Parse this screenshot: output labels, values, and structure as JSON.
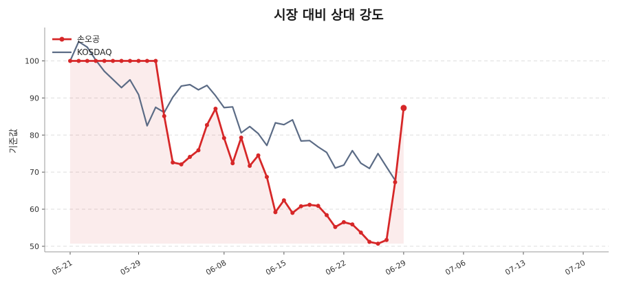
{
  "chart_data": {
    "type": "line",
    "title": "시장 대비 상대 강도",
    "xlabel": "",
    "ylabel": "기준값",
    "ylim": [
      48.5,
      109
    ],
    "yticks": [
      50,
      60,
      70,
      80,
      90,
      100
    ],
    "x": [
      "05-21",
      "05-22",
      "05-23",
      "05-24",
      "05-25",
      "05-26",
      "05-27",
      "05-28",
      "05-29",
      "05-30",
      "05-31",
      "06-01",
      "06-02",
      "06-03",
      "06-04",
      "06-05",
      "06-06",
      "06-07",
      "06-08",
      "06-09",
      "06-10",
      "06-11",
      "06-12",
      "06-13",
      "06-14",
      "06-15",
      "06-16",
      "06-17",
      "06-18",
      "06-19",
      "06-20",
      "06-21",
      "06-22",
      "06-23",
      "06-24",
      "06-25",
      "06-26",
      "06-27",
      "06-28",
      "06-29",
      "06-30",
      "07-01",
      "07-02",
      "07-03",
      "07-04",
      "07-05",
      "07-06",
      "07-07",
      "07-08",
      "07-09",
      "07-10",
      "07-11",
      "07-12",
      "07-13",
      "07-14",
      "07-15",
      "07-16",
      "07-17",
      "07-18",
      "07-19",
      "07-20"
    ],
    "xticks": [
      "05-21",
      "05-29",
      "06-08",
      "06-15",
      "06-22",
      "06-29",
      "07-06",
      "07-13",
      "07-20"
    ],
    "grid": true,
    "legend_position": "top-left",
    "series": [
      {
        "name": "손오공",
        "color": "#d62728",
        "style": "line-markers-filled",
        "points": [
          [
            "05-21",
            100
          ],
          [
            "05-22",
            100
          ],
          [
            "05-23",
            100
          ],
          [
            "05-24",
            100
          ],
          [
            "05-25",
            100
          ],
          [
            "05-26",
            100
          ],
          [
            "05-27",
            100
          ],
          [
            "05-28",
            100
          ],
          [
            "05-29",
            100
          ],
          [
            "05-30",
            100
          ],
          [
            "05-31",
            100
          ],
          [
            "06-01",
            85.1
          ],
          [
            "06-02",
            72.6
          ],
          [
            "06-03",
            72.1
          ],
          [
            "06-04",
            74.1
          ],
          [
            "06-05",
            75.9
          ],
          [
            "06-06",
            82.7
          ],
          [
            "06-07",
            87.1
          ],
          [
            "06-08",
            79.2
          ],
          [
            "06-09",
            72.4
          ],
          [
            "06-10",
            79.3
          ],
          [
            "06-11",
            71.7
          ],
          [
            "06-12",
            74.5
          ],
          [
            "06-13",
            68.7
          ],
          [
            "06-14",
            59.2
          ],
          [
            "06-15",
            62.4
          ],
          [
            "06-16",
            59.0
          ],
          [
            "06-17",
            60.8
          ],
          [
            "06-18",
            61.2
          ],
          [
            "06-19",
            60.9
          ],
          [
            "06-20",
            58.4
          ],
          [
            "06-21",
            55.2
          ],
          [
            "06-22",
            56.5
          ],
          [
            "06-23",
            55.9
          ],
          [
            "06-24",
            53.7
          ],
          [
            "06-25",
            51.2
          ],
          [
            "06-26",
            50.7
          ],
          [
            "06-27",
            51.7
          ],
          [
            "06-28",
            67.3
          ],
          [
            "06-29",
            87.3
          ]
        ]
      },
      {
        "name": "KOSDAQ",
        "color": "#5b6b85",
        "style": "line",
        "points": [
          [
            "05-21",
            100
          ],
          [
            "05-22",
            105.2
          ],
          [
            "05-23",
            103.7
          ],
          [
            "05-24",
            100.2
          ],
          [
            "05-25",
            97.2
          ],
          [
            "05-26",
            95.0
          ],
          [
            "05-27",
            92.8
          ],
          [
            "05-28",
            94.9
          ],
          [
            "05-29",
            90.9
          ],
          [
            "05-30",
            82.5
          ],
          [
            "05-31",
            87.5
          ],
          [
            "06-01",
            86.1
          ],
          [
            "06-02",
            90.2
          ],
          [
            "06-03",
            93.2
          ],
          [
            "06-04",
            93.6
          ],
          [
            "06-05",
            92.2
          ],
          [
            "06-06",
            93.4
          ],
          [
            "06-07",
            90.6
          ],
          [
            "06-08",
            87.4
          ],
          [
            "06-09",
            87.6
          ],
          [
            "06-10",
            80.6
          ],
          [
            "06-11",
            82.3
          ],
          [
            "06-12",
            80.4
          ],
          [
            "06-13",
            77.2
          ],
          [
            "06-14",
            83.3
          ],
          [
            "06-15",
            82.8
          ],
          [
            "06-16",
            84.1
          ],
          [
            "06-17",
            78.4
          ],
          [
            "06-18",
            78.5
          ],
          [
            "06-19",
            76.8
          ],
          [
            "06-20",
            75.3
          ],
          [
            "06-21",
            71.1
          ],
          [
            "06-22",
            71.9
          ],
          [
            "06-23",
            75.8
          ],
          [
            "06-24",
            72.4
          ],
          [
            "06-25",
            71.0
          ],
          [
            "06-26",
            75.0
          ],
          [
            "06-27",
            71.4
          ],
          [
            "06-28",
            67.8
          ]
        ]
      }
    ]
  }
}
